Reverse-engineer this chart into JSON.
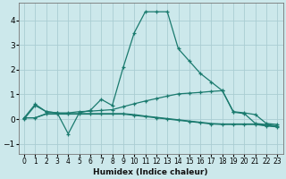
{
  "xlabel": "Humidex (Indice chaleur)",
  "background_color": "#cce8eb",
  "grid_color": "#aacdd2",
  "line_color": "#1a7a6e",
  "xlim": [
    -0.5,
    23.5
  ],
  "ylim": [
    -1.4,
    4.7
  ],
  "xticks": [
    0,
    1,
    2,
    3,
    4,
    5,
    6,
    7,
    8,
    9,
    10,
    11,
    12,
    13,
    14,
    15,
    16,
    17,
    18,
    19,
    20,
    21,
    22,
    23
  ],
  "yticks": [
    -1,
    0,
    1,
    2,
    3,
    4
  ],
  "curve1_x": [
    0,
    1,
    2,
    3,
    4,
    5,
    6,
    7,
    8,
    9,
    10,
    11,
    12,
    13,
    14,
    15,
    16,
    17,
    18,
    19,
    20,
    21,
    22,
    23
  ],
  "curve1_y": [
    0.0,
    0.55,
    0.3,
    0.25,
    -0.6,
    0.25,
    0.35,
    0.8,
    0.55,
    2.1,
    3.5,
    4.35,
    4.35,
    4.35,
    2.85,
    2.35,
    1.85,
    1.5,
    1.15,
    0.28,
    0.22,
    -0.18,
    -0.22,
    -0.28
  ],
  "curve2_x": [
    0,
    1,
    2,
    3,
    4,
    5,
    6,
    7,
    8,
    9,
    10,
    11,
    12,
    13,
    14,
    15,
    16,
    17,
    18,
    19,
    20,
    21,
    22,
    23
  ],
  "curve2_y": [
    0.05,
    0.6,
    0.3,
    0.25,
    0.25,
    0.3,
    0.32,
    0.35,
    0.38,
    0.5,
    0.62,
    0.73,
    0.83,
    0.93,
    1.02,
    1.05,
    1.08,
    1.12,
    1.15,
    0.3,
    0.25,
    0.18,
    -0.18,
    -0.22
  ],
  "curve3_x": [
    0,
    1,
    2,
    3,
    4,
    5,
    6,
    7,
    8,
    9,
    10,
    11,
    12,
    13,
    14,
    15,
    16,
    17,
    18,
    19,
    20,
    21,
    22,
    23
  ],
  "curve3_y": [
    0.05,
    0.05,
    0.2,
    0.2,
    0.2,
    0.2,
    0.2,
    0.2,
    0.2,
    0.2,
    0.15,
    0.1,
    0.05,
    0.0,
    -0.05,
    -0.1,
    -0.15,
    -0.2,
    -0.22,
    -0.22,
    -0.22,
    -0.22,
    -0.28,
    -0.32
  ],
  "curve4_x": [
    0,
    1,
    2,
    3,
    4,
    5,
    6,
    7,
    8,
    9,
    10,
    11,
    12,
    13,
    14,
    15,
    16,
    17,
    18,
    19,
    20,
    21,
    22,
    23
  ],
  "curve4_y": [
    0.05,
    0.05,
    0.22,
    0.22,
    0.22,
    0.22,
    0.22,
    0.22,
    0.22,
    0.22,
    0.18,
    0.12,
    0.07,
    0.02,
    -0.03,
    -0.08,
    -0.13,
    -0.18,
    -0.2,
    -0.2,
    -0.2,
    -0.2,
    -0.26,
    -0.3
  ]
}
